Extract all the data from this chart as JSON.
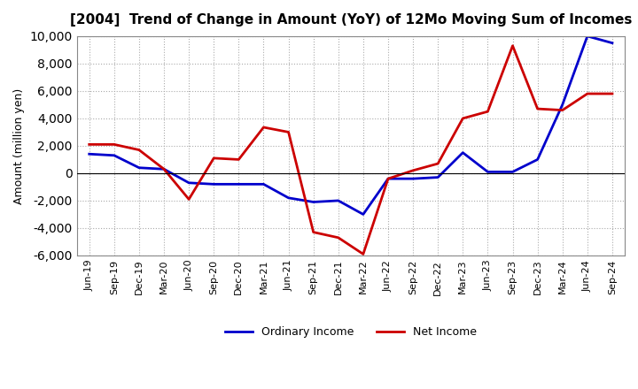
{
  "title": "[2004]  Trend of Change in Amount (YoY) of 12Mo Moving Sum of Incomes",
  "ylabel": "Amount (million yen)",
  "x_labels": [
    "Jun-19",
    "Sep-19",
    "Dec-19",
    "Mar-20",
    "Jun-20",
    "Sep-20",
    "Dec-20",
    "Mar-21",
    "Jun-21",
    "Sep-21",
    "Dec-21",
    "Mar-22",
    "Jun-22",
    "Sep-22",
    "Dec-22",
    "Mar-23",
    "Jun-23",
    "Sep-23",
    "Dec-23",
    "Mar-24",
    "Jun-24",
    "Sep-24"
  ],
  "ordinary_income": [
    1400,
    1300,
    400,
    300,
    -700,
    -800,
    -800,
    -800,
    -1800,
    -2100,
    -2000,
    -3000,
    -400,
    -400,
    -300,
    1500,
    100,
    100,
    1000,
    5000,
    10000,
    9500
  ],
  "net_income": [
    2100,
    2100,
    1700,
    300,
    -1900,
    1100,
    1000,
    3350,
    3000,
    -4300,
    -4700,
    -5900,
    -400,
    200,
    700,
    4000,
    4500,
    9300,
    4700,
    4600,
    5800,
    5800
  ],
  "ordinary_color": "#0000cc",
  "net_color": "#cc0000",
  "ylim": [
    -6000,
    10000
  ],
  "yticks": [
    -6000,
    -4000,
    -2000,
    0,
    2000,
    4000,
    6000,
    8000,
    10000
  ],
  "background_color": "#ffffff",
  "grid_color": "#aaaaaa",
  "legend_labels": [
    "Ordinary Income",
    "Net Income"
  ]
}
